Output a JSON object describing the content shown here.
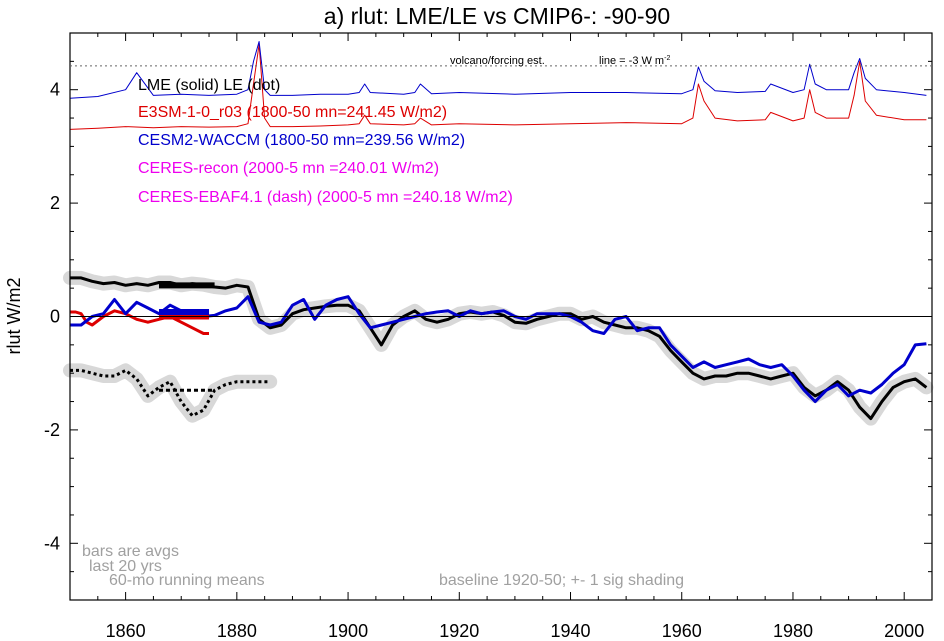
{
  "chart_data": {
    "type": "line",
    "title": "a) rlut: LME/LE vs CMIP6-: -90-90",
    "ylabel": "rlut W/m2",
    "xlabel": "",
    "xlim": [
      1850,
      2005
    ],
    "ylim": [
      -5,
      5
    ],
    "x_ticks": [
      1860,
      1880,
      1900,
      1920,
      1940,
      1960,
      1980,
      2000
    ],
    "y_ticks": [
      -4,
      -2,
      0,
      2,
      4
    ],
    "grid": false,
    "zero_line": 0,
    "forcing_ref_level": 4.42,
    "annotations": {
      "forcing": "volcano/forcing est.",
      "line": "line = -3 W m",
      "line_sup": "-2",
      "bars": "bars are avgs",
      "last20": "last 20 yrs",
      "running": "60-mo running means",
      "baseline": "baseline 1920-50; +- 1 sig shading"
    },
    "legend": [
      {
        "label": "LME (solid)   LE (dot)",
        "color": "#000000"
      },
      {
        "label": "E3SM-1-0_r03 (1800-50 mn=241.45 W/m2)",
        "color": "#dd0000"
      },
      {
        "label": "CESM2-WACCM (1800-50 mn=239.56 W/m2)",
        "color": "#0000cc"
      },
      {
        "label": "CERES-recon (2000-5 mn =240.01 W/m2)",
        "color": "#ee00ee"
      },
      {
        "label": "CERES-EBAF4.1 (dash) (2000-5 mn =240.18 W/m2)",
        "color": "#ee00ee"
      }
    ],
    "series": [
      {
        "name": "LME (solid)",
        "color": "#000000",
        "x": [
          1850,
          1852,
          1854,
          1856,
          1858,
          1860,
          1862,
          1864,
          1866,
          1868,
          1870,
          1872,
          1874,
          1876,
          1878,
          1880,
          1882,
          1884,
          1886,
          1888,
          1890,
          1892,
          1894,
          1896,
          1898,
          1900,
          1902,
          1904,
          1906,
          1908,
          1910,
          1912,
          1914,
          1916,
          1918,
          1920,
          1922,
          1924,
          1926,
          1928,
          1930,
          1932,
          1934,
          1936,
          1938,
          1940,
          1942,
          1944,
          1946,
          1948,
          1950,
          1952,
          1954,
          1956,
          1958,
          1960,
          1962,
          1964,
          1966,
          1968,
          1970,
          1972,
          1974,
          1976,
          1978,
          1980,
          1982,
          1984,
          1986,
          1988,
          1990,
          1992,
          1994,
          1996,
          1998,
          2000,
          2002,
          2004
        ],
        "y": [
          0.68,
          0.68,
          0.62,
          0.58,
          0.6,
          0.55,
          0.58,
          0.55,
          0.6,
          0.6,
          0.55,
          0.58,
          0.56,
          0.52,
          0.5,
          0.55,
          0.52,
          -0.05,
          -0.2,
          -0.15,
          0.05,
          0.12,
          0.15,
          0.18,
          0.2,
          0.2,
          0.1,
          -0.2,
          -0.5,
          -0.15,
          0.0,
          0.1,
          -0.05,
          -0.1,
          -0.05,
          0.05,
          0.08,
          0.05,
          0.08,
          0.02,
          -0.1,
          -0.12,
          -0.05,
          0.0,
          0.05,
          0.05,
          -0.05,
          0.0,
          -0.1,
          -0.15,
          -0.2,
          -0.2,
          -0.25,
          -0.35,
          -0.6,
          -0.8,
          -1.0,
          -1.1,
          -1.05,
          -1.05,
          -1.0,
          -1.0,
          -1.05,
          -1.1,
          -1.05,
          -1.0,
          -1.25,
          -1.4,
          -1.3,
          -1.15,
          -1.3,
          -1.6,
          -1.8,
          -1.5,
          -1.25,
          -1.15,
          -1.1,
          -1.25
        ]
      },
      {
        "name": "LE (dot)",
        "color": "#000000",
        "x": [
          1850,
          1852,
          1854,
          1856,
          1858,
          1860,
          1862,
          1864,
          1866,
          1868,
          1870,
          1872,
          1874,
          1876,
          1878,
          1880,
          1882,
          1884,
          1886
        ],
        "y": [
          -0.95,
          -0.95,
          -1.0,
          -1.05,
          -1.05,
          -0.95,
          -1.1,
          -1.4,
          -1.25,
          -1.15,
          -1.5,
          -1.75,
          -1.65,
          -1.3,
          -1.2,
          -1.15,
          -1.15,
          -1.15,
          -1.15
        ]
      },
      {
        "name": "E3SM-1-0_r03",
        "color": "#dd0000",
        "x": [
          1850,
          1851,
          1852,
          1853,
          1854,
          1856,
          1858,
          1860,
          1862,
          1864,
          1866,
          1868,
          1870,
          1872,
          1874,
          1875
        ],
        "y": [
          0.08,
          0.08,
          0.05,
          -0.1,
          -0.15,
          0.0,
          0.1,
          0.05,
          -0.05,
          -0.1,
          -0.05,
          0.0,
          -0.1,
          -0.2,
          -0.3,
          -0.3
        ]
      },
      {
        "name": "CESM2-WACCM",
        "color": "#0000cc",
        "x": [
          1850,
          1852,
          1854,
          1856,
          1858,
          1860,
          1862,
          1864,
          1866,
          1868,
          1870,
          1872,
          1874,
          1876,
          1878,
          1880,
          1882,
          1884,
          1886,
          1888,
          1890,
          1892,
          1894,
          1896,
          1898,
          1900,
          1902,
          1904,
          1906,
          1908,
          1910,
          1912,
          1914,
          1916,
          1918,
          1920,
          1922,
          1924,
          1926,
          1928,
          1930,
          1932,
          1934,
          1936,
          1938,
          1940,
          1942,
          1944,
          1946,
          1948,
          1950,
          1952,
          1954,
          1956,
          1958,
          1960,
          1962,
          1964,
          1966,
          1968,
          1970,
          1972,
          1974,
          1976,
          1978,
          1980,
          1982,
          1984,
          1986,
          1988,
          1990,
          1992,
          1994,
          1996,
          1998,
          2000,
          2002,
          2004
        ],
        "y": [
          -0.15,
          -0.15,
          0.0,
          0.05,
          0.3,
          0.05,
          0.25,
          0.15,
          0.05,
          0.2,
          0.1,
          0.02,
          0.0,
          0.02,
          0.1,
          0.15,
          0.35,
          -0.1,
          -0.15,
          -0.1,
          0.2,
          0.3,
          -0.05,
          0.2,
          0.3,
          0.35,
          0.05,
          -0.2,
          -0.15,
          -0.1,
          -0.05,
          0.0,
          0.05,
          0.08,
          0.1,
          0.0,
          0.1,
          0.05,
          0.08,
          0.1,
          0.0,
          -0.05,
          0.05,
          0.05,
          0.05,
          0.0,
          -0.1,
          -0.25,
          -0.3,
          -0.05,
          0.0,
          -0.25,
          -0.2,
          -0.2,
          -0.5,
          -0.7,
          -0.9,
          -0.8,
          -0.9,
          -0.85,
          -0.8,
          -0.75,
          -0.85,
          -0.9,
          -0.85,
          -1.05,
          -1.3,
          -1.5,
          -1.3,
          -1.2,
          -1.4,
          -1.3,
          -1.35,
          -1.2,
          -1.0,
          -0.85,
          -0.5,
          -0.48
        ]
      },
      {
        "name": "E3SM-1-0_r03 forcing",
        "color": "#dd0000",
        "x": [
          1850,
          1855,
          1860,
          1865,
          1870,
          1875,
          1880,
          1882,
          1883,
          1884,
          1885,
          1886,
          1890,
          1895,
          1900,
          1902,
          1903,
          1904,
          1910,
          1912,
          1913,
          1915,
          1920,
          1930,
          1940,
          1950,
          1960,
          1962,
          1963,
          1964,
          1966,
          1970,
          1975,
          1976,
          1980,
          1982,
          1983,
          1984,
          1986,
          1990,
          1991,
          1992,
          1993,
          1995,
          2000,
          2004
        ],
        "y": [
          3.3,
          3.32,
          3.35,
          3.33,
          3.35,
          3.34,
          3.35,
          3.4,
          4.1,
          4.8,
          3.5,
          3.35,
          3.35,
          3.36,
          3.38,
          3.4,
          3.55,
          3.4,
          3.38,
          3.4,
          3.5,
          3.38,
          3.4,
          3.38,
          3.4,
          3.42,
          3.4,
          3.5,
          4.1,
          3.8,
          3.5,
          3.45,
          3.47,
          3.6,
          3.45,
          3.5,
          4.0,
          3.6,
          3.5,
          3.5,
          3.9,
          4.5,
          3.8,
          3.55,
          3.47,
          3.47
        ]
      },
      {
        "name": "CESM2-WACCM forcing",
        "color": "#0000cc",
        "x": [
          1850,
          1855,
          1860,
          1862,
          1865,
          1870,
          1875,
          1880,
          1882,
          1883,
          1884,
          1885,
          1886,
          1890,
          1895,
          1900,
          1902,
          1903,
          1904,
          1910,
          1912,
          1913,
          1915,
          1920,
          1930,
          1940,
          1950,
          1960,
          1962,
          1963,
          1964,
          1966,
          1970,
          1975,
          1976,
          1980,
          1982,
          1983,
          1984,
          1986,
          1990,
          1991,
          1992,
          1993,
          1995,
          2000,
          2004
        ],
        "y": [
          3.85,
          3.88,
          4.0,
          4.3,
          3.9,
          3.92,
          3.9,
          3.92,
          4.0,
          4.5,
          4.85,
          4.0,
          3.9,
          3.9,
          3.92,
          3.92,
          3.95,
          4.1,
          3.95,
          3.92,
          3.95,
          4.1,
          3.93,
          3.95,
          3.92,
          3.95,
          3.95,
          3.93,
          4.0,
          4.4,
          4.15,
          3.98,
          3.95,
          3.97,
          4.1,
          3.95,
          4.0,
          4.45,
          4.1,
          4.0,
          4.0,
          4.3,
          4.55,
          4.2,
          4.0,
          3.95,
          3.9
        ]
      }
    ],
    "bars": [
      {
        "name": "LME avg",
        "color": "#000000",
        "x": [
          1866,
          1876
        ],
        "y": 0.55
      },
      {
        "name": "LE avg",
        "color": "#000000",
        "x": [
          1866,
          1876
        ],
        "y": -1.3
      },
      {
        "name": "E3SM avg",
        "color": "#dd0000",
        "x": [
          1866,
          1875
        ],
        "y": 0.0
      },
      {
        "name": "CESM2 avg",
        "color": "#0000cc",
        "x": [
          1866,
          1875
        ],
        "y": 0.08
      }
    ]
  }
}
